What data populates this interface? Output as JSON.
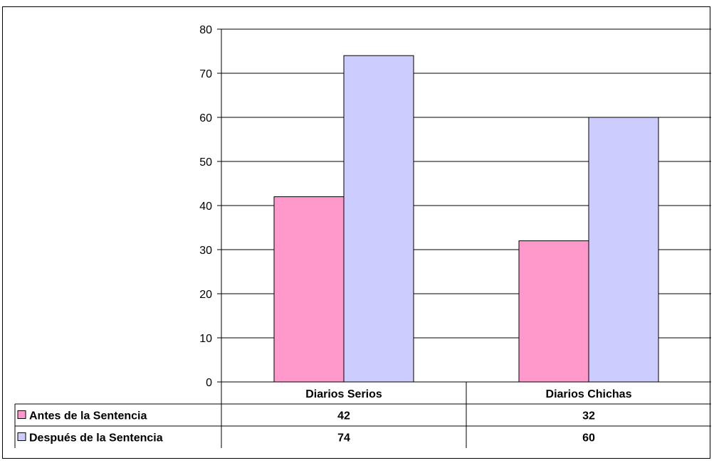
{
  "chart_data": {
    "type": "bar",
    "categories": [
      "Diarios Serios",
      "Diarios Chichas"
    ],
    "series": [
      {
        "name": "Antes de la Sentencia",
        "values": [
          42,
          32
        ],
        "color": "#ff99cc"
      },
      {
        "name": "Después de la Sentencia",
        "values": [
          74,
          60
        ],
        "color": "#ccccff"
      }
    ],
    "ylim": [
      0,
      80
    ],
    "yticks": [
      0,
      10,
      20,
      30,
      40,
      50,
      60,
      70,
      80
    ],
    "grid": true,
    "legend": "data-table-left",
    "data_table": true
  }
}
